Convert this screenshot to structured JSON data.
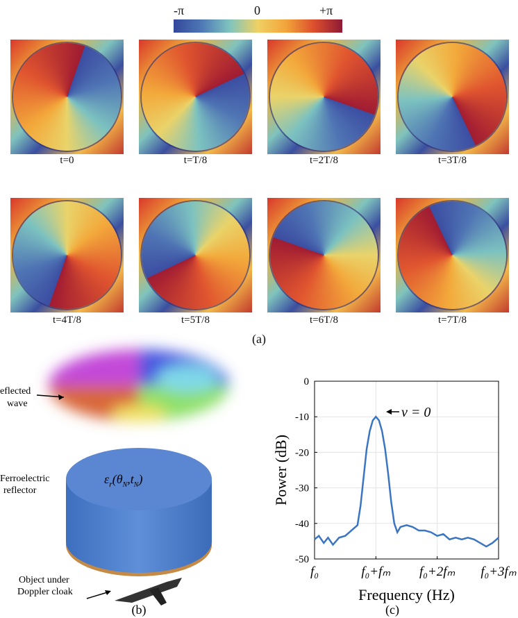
{
  "figure_a": {
    "colorbar": [
      "-π",
      "0",
      "+π"
    ],
    "frames": [
      "t=0",
      "t=T/8",
      "t=2T/8",
      "t=3T/8",
      "t=4T/8",
      "t=5T/8",
      "t=6T/8",
      "t=7T/8"
    ],
    "caption": "(a)"
  },
  "figure_b": {
    "wave_label": [
      "eflected",
      "wave"
    ],
    "reflector_label": [
      "Ferroelectric",
      "reflector"
    ],
    "permittivity": [
      "ε",
      "r",
      "(θ",
      "N",
      ",t",
      "N",
      ")"
    ],
    "object_label": [
      "Object under",
      "Doppler cloak"
    ],
    "caption": "(b)"
  },
  "chart_data": {
    "type": "line",
    "caption": "(c)",
    "x_label": "Frequency (Hz)",
    "y_label": "Power (dB)",
    "annotation": "ν = 0",
    "x": [
      0,
      0.07,
      0.15,
      0.22,
      0.3,
      0.4,
      0.5,
      0.6,
      0.7,
      0.75,
      0.8,
      0.85,
      0.9,
      0.95,
      1.0,
      1.05,
      1.1,
      1.15,
      1.2,
      1.25,
      1.3,
      1.35,
      1.4,
      1.5,
      1.6,
      1.7,
      1.8,
      1.9,
      2.0,
      2.1,
      2.2,
      2.3,
      2.4,
      2.5,
      2.6,
      2.7,
      2.8,
      2.9,
      3.0
    ],
    "series": [
      {
        "name": "ν = 0",
        "color": "#3a75c4",
        "values": [
          -44.5,
          -43.5,
          -45.5,
          -44,
          -46,
          -44,
          -43.5,
          -42,
          -40.5,
          -35,
          -27,
          -19,
          -14,
          -11,
          -10,
          -11,
          -14,
          -19,
          -26,
          -34,
          -40,
          -42.5,
          -41,
          -40.5,
          -41,
          -42,
          -42,
          -42.5,
          -43.5,
          -43,
          -44.5,
          -44,
          -44.5,
          -44,
          -44.5,
          -45.5,
          -46.5,
          -45.5,
          -44
        ]
      }
    ],
    "xlim": [
      0,
      3
    ],
    "xticks": [
      {
        "value": 0,
        "label": "f₀"
      },
      {
        "value": 1,
        "label": "f₀+fₘ"
      },
      {
        "value": 2,
        "label": "f₀+2fₘ"
      },
      {
        "value": 3,
        "label": "f₀+3fₘ"
      }
    ],
    "ylim": [
      -50,
      0
    ],
    "yticks": [
      0,
      -10,
      -20,
      -30,
      -40,
      -50
    ],
    "grid": true
  }
}
